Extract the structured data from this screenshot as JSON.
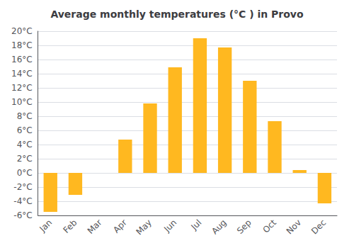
{
  "chart_data": {
    "type": "bar",
    "title": "Average monthly temperatures (°C ) in Provo",
    "categories": [
      "Jan",
      "Feb",
      "Mar",
      "Apr",
      "May",
      "Jun",
      "Jul",
      "Aug",
      "Sep",
      "Oct",
      "Nov",
      "Dec"
    ],
    "values": [
      -5.5,
      -3.1,
      0.0,
      4.7,
      9.8,
      14.9,
      19.0,
      17.7,
      13.0,
      7.3,
      0.4,
      -4.3
    ],
    "color": "#FFB820",
    "ylim": [
      -6,
      20
    ],
    "yticks": [
      {
        "value": -6,
        "label": "-6°C"
      },
      {
        "value": -4,
        "label": "-4°C"
      },
      {
        "value": -2,
        "label": "-2°C"
      },
      {
        "value": 0,
        "label": "0°C"
      },
      {
        "value": 2,
        "label": "2°C"
      },
      {
        "value": 4,
        "label": "4°C"
      },
      {
        "value": 6,
        "label": "6°C"
      },
      {
        "value": 8,
        "label": "8°C"
      },
      {
        "value": 10,
        "label": "10°C"
      },
      {
        "value": 12,
        "label": "12°C"
      },
      {
        "value": 14,
        "label": "14°C"
      },
      {
        "value": 16,
        "label": "16°C"
      },
      {
        "value": 18,
        "label": "18°C"
      },
      {
        "value": 20,
        "label": "20°C"
      }
    ],
    "grid": true
  }
}
